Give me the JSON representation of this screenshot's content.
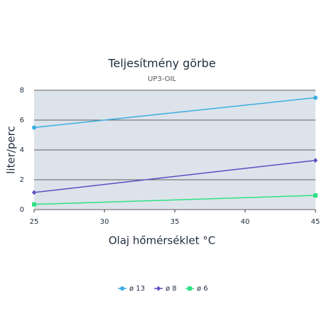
{
  "chart_data": {
    "type": "line",
    "title": "Teljesítmény görbe",
    "subtitle": "UP3-OIL",
    "x_label": "Olaj hőmérséklet °C",
    "y_label": "liter/perc",
    "x": [
      25,
      45
    ],
    "series": [
      {
        "name": "ø 13",
        "color": "#3aaee0",
        "marker": "circle",
        "values": [
          5.5,
          7.5
        ]
      },
      {
        "name": "ø 8",
        "color": "#5a4fc2",
        "marker": "diamond",
        "values": [
          1.15,
          3.3
        ]
      },
      {
        "name": "ø 6",
        "color": "#2fe184",
        "marker": "square",
        "values": [
          0.35,
          0.95
        ]
      }
    ],
    "xlim": [
      25,
      45
    ],
    "xticks": [
      25,
      30,
      35,
      40,
      45
    ],
    "ylim": [
      0,
      8
    ],
    "yticks": [
      0,
      2,
      4,
      6,
      8
    ],
    "grid": true,
    "legend": "bottom"
  }
}
